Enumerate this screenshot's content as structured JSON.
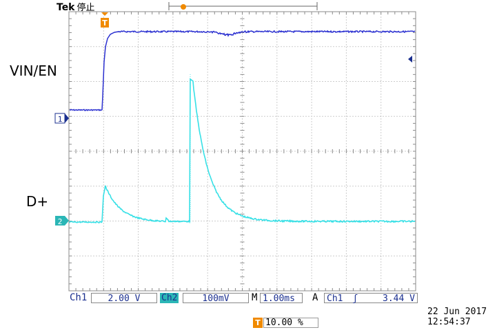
{
  "header": {
    "brand": "Tek",
    "status": "停止"
  },
  "labels": {
    "vin_en": "VIN/EN",
    "d_plus": "D+"
  },
  "markers": {
    "ch1": "1",
    "ch2": "2",
    "trigger": "T"
  },
  "readouts": {
    "ch1_name": "Ch1",
    "ch1_scale": "2.00 V",
    "ch2_name": "Ch2",
    "ch2_scale": "100mV",
    "time_prefix": "M",
    "time_scale": "1.00ms",
    "trig_prefix": "A",
    "trig_source": "Ch1",
    "trig_slope": "ʃ",
    "trig_level": "3.44 V",
    "trig_position": "10.00 %"
  },
  "timestamp": {
    "date": "22 Jun  2017",
    "time": "12:54:37"
  },
  "colors": {
    "ch1": "#2a2fd0",
    "ch2": "#36e0e6",
    "grid": "#9a9a9a",
    "trigger": "#f08a00",
    "bar_text": "#1a2f8f"
  }
}
